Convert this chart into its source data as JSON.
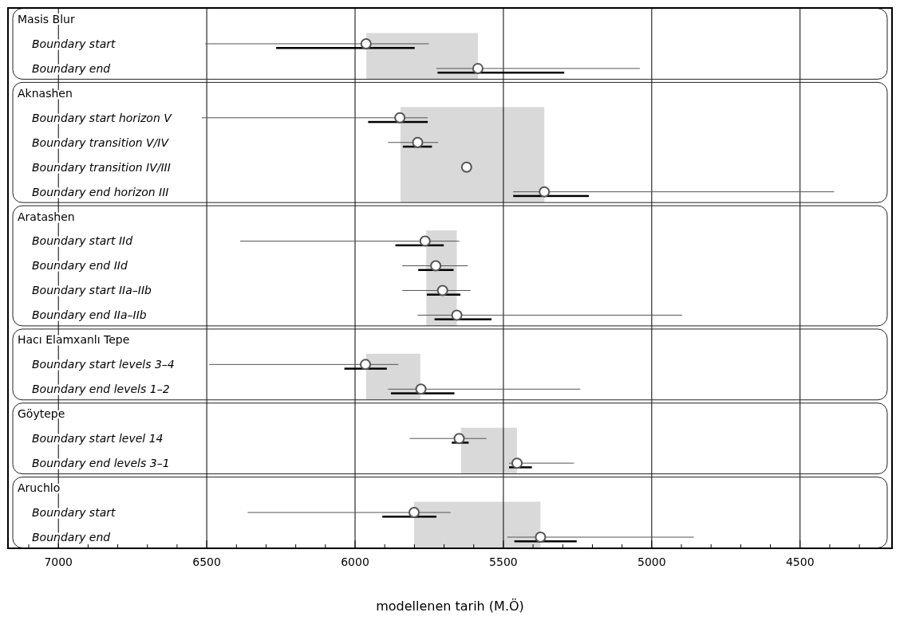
{
  "chart_data": {
    "type": "scatter",
    "orientation": "horizontal",
    "xlabel": "modellenen tarih (M.Ö)",
    "grid": "x",
    "xlim": [
      7170,
      4190
    ],
    "xticks": [
      {
        "value": 7100,
        "label": null
      },
      7000,
      {
        "value": 6900,
        "label": null
      },
      {
        "value": 6800,
        "label": null
      },
      {
        "value": 6700,
        "label": null
      },
      {
        "value": 6600,
        "label": null
      },
      6500,
      {
        "value": 6400,
        "label": null
      },
      {
        "value": 6300,
        "label": null
      },
      {
        "value": 6200,
        "label": null
      },
      {
        "value": 6100,
        "label": null
      },
      6000,
      {
        "value": 5900,
        "label": null
      },
      {
        "value": 5800,
        "label": null
      },
      {
        "value": 5700,
        "label": null
      },
      {
        "value": 5600,
        "label": null
      },
      5500,
      {
        "value": 5400,
        "label": null
      },
      {
        "value": 5300,
        "label": null
      },
      {
        "value": 5200,
        "label": null
      },
      {
        "value": 5100,
        "label": null
      },
      5000,
      {
        "value": 4900,
        "label": null
      },
      {
        "value": 4800,
        "label": null
      },
      {
        "value": 4700,
        "label": null
      },
      {
        "value": 4600,
        "label": null
      },
      4500,
      {
        "value": 4400,
        "label": null
      },
      {
        "value": 4300,
        "label": null
      }
    ],
    "categories": [
      "Masis Blur",
      "Boundary start",
      "Boundary end",
      "Aknashen",
      "Boundary start horizon V",
      "Boundary transition V/IV",
      "Boundary transition IV/III",
      "Boundary end horizon III",
      "Aratashen",
      "Boundary start IId",
      "Boundary end IId",
      "Boundary start IIa–IIb",
      "Boundary end IIa–IIb",
      "Hacı Elamxanlı Tepe",
      "Boundary start levels 3–4",
      "Boundary end levels 1–2",
      "Göytepe",
      "Boundary start level 14",
      "Boundary end levels 3–1",
      "Aruchlo",
      "Boundary start",
      "Boundary end"
    ],
    "series": [
      {
        "marker": "circle",
        "color": "#555555",
        "values": [
          null,
          5963,
          5586,
          null,
          5849,
          5789,
          5624,
          5362,
          null,
          5764,
          5728,
          5705,
          5657,
          null,
          5965,
          5778,
          null,
          5649,
          5454,
          null,
          5801,
          5375
        ],
        "errors": [
          null,
          [
            5751,
            6505
          ],
          [
            5040,
            5726
          ],
          null,
          [
            5755,
            6517
          ],
          [
            5720,
            5889
          ],
          null,
          [
            4385,
            5467
          ],
          null,
          [
            5649,
            6387
          ],
          [
            5620,
            5841
          ],
          [
            5611,
            5841
          ],
          [
            4898,
            5789
          ],
          null,
          [
            5854,
            6492
          ],
          [
            5241,
            5889
          ],
          null,
          [
            5557,
            5816
          ],
          [
            5262,
            5481
          ],
          null,
          [
            5678,
            6362
          ],
          [
            4858,
            5487
          ]
        ]
      },
      {
        "type": "bar",
        "color": "#000000",
        "base": [
          null,
          5799,
          5295,
          null,
          5755,
          5741,
          null,
          5212,
          null,
          5701,
          5668,
          5645,
          5540,
          null,
          5893,
          5665,
          null,
          5617,
          5404,
          null,
          5726,
          5253
        ],
        "values": [
          null,
          467,
          427,
          null,
          201,
          98,
          null,
          255,
          null,
          163,
          119,
          113,
          192,
          null,
          143,
          214,
          null,
          57,
          77,
          null,
          182,
          210
        ]
      }
    ],
    "bands": [
      {
        "axis": "x",
        "from": 5962,
        "to": 5586,
        "color": "#d9d9d9"
      },
      {
        "axis": "x",
        "from": 5847,
        "to": 5362,
        "color": "#d9d9d9"
      },
      {
        "axis": "x",
        "from": 5760,
        "to": 5657,
        "color": "#d9d9d9"
      },
      {
        "axis": "x",
        "from": 5963,
        "to": 5780,
        "color": "#d9d9d9"
      },
      {
        "axis": "x",
        "from": 5643,
        "to": 5454,
        "color": "#d9d9d9"
      },
      {
        "axis": "x",
        "from": 5801,
        "to": 5375,
        "color": "#d9d9d9"
      }
    ]
  }
}
